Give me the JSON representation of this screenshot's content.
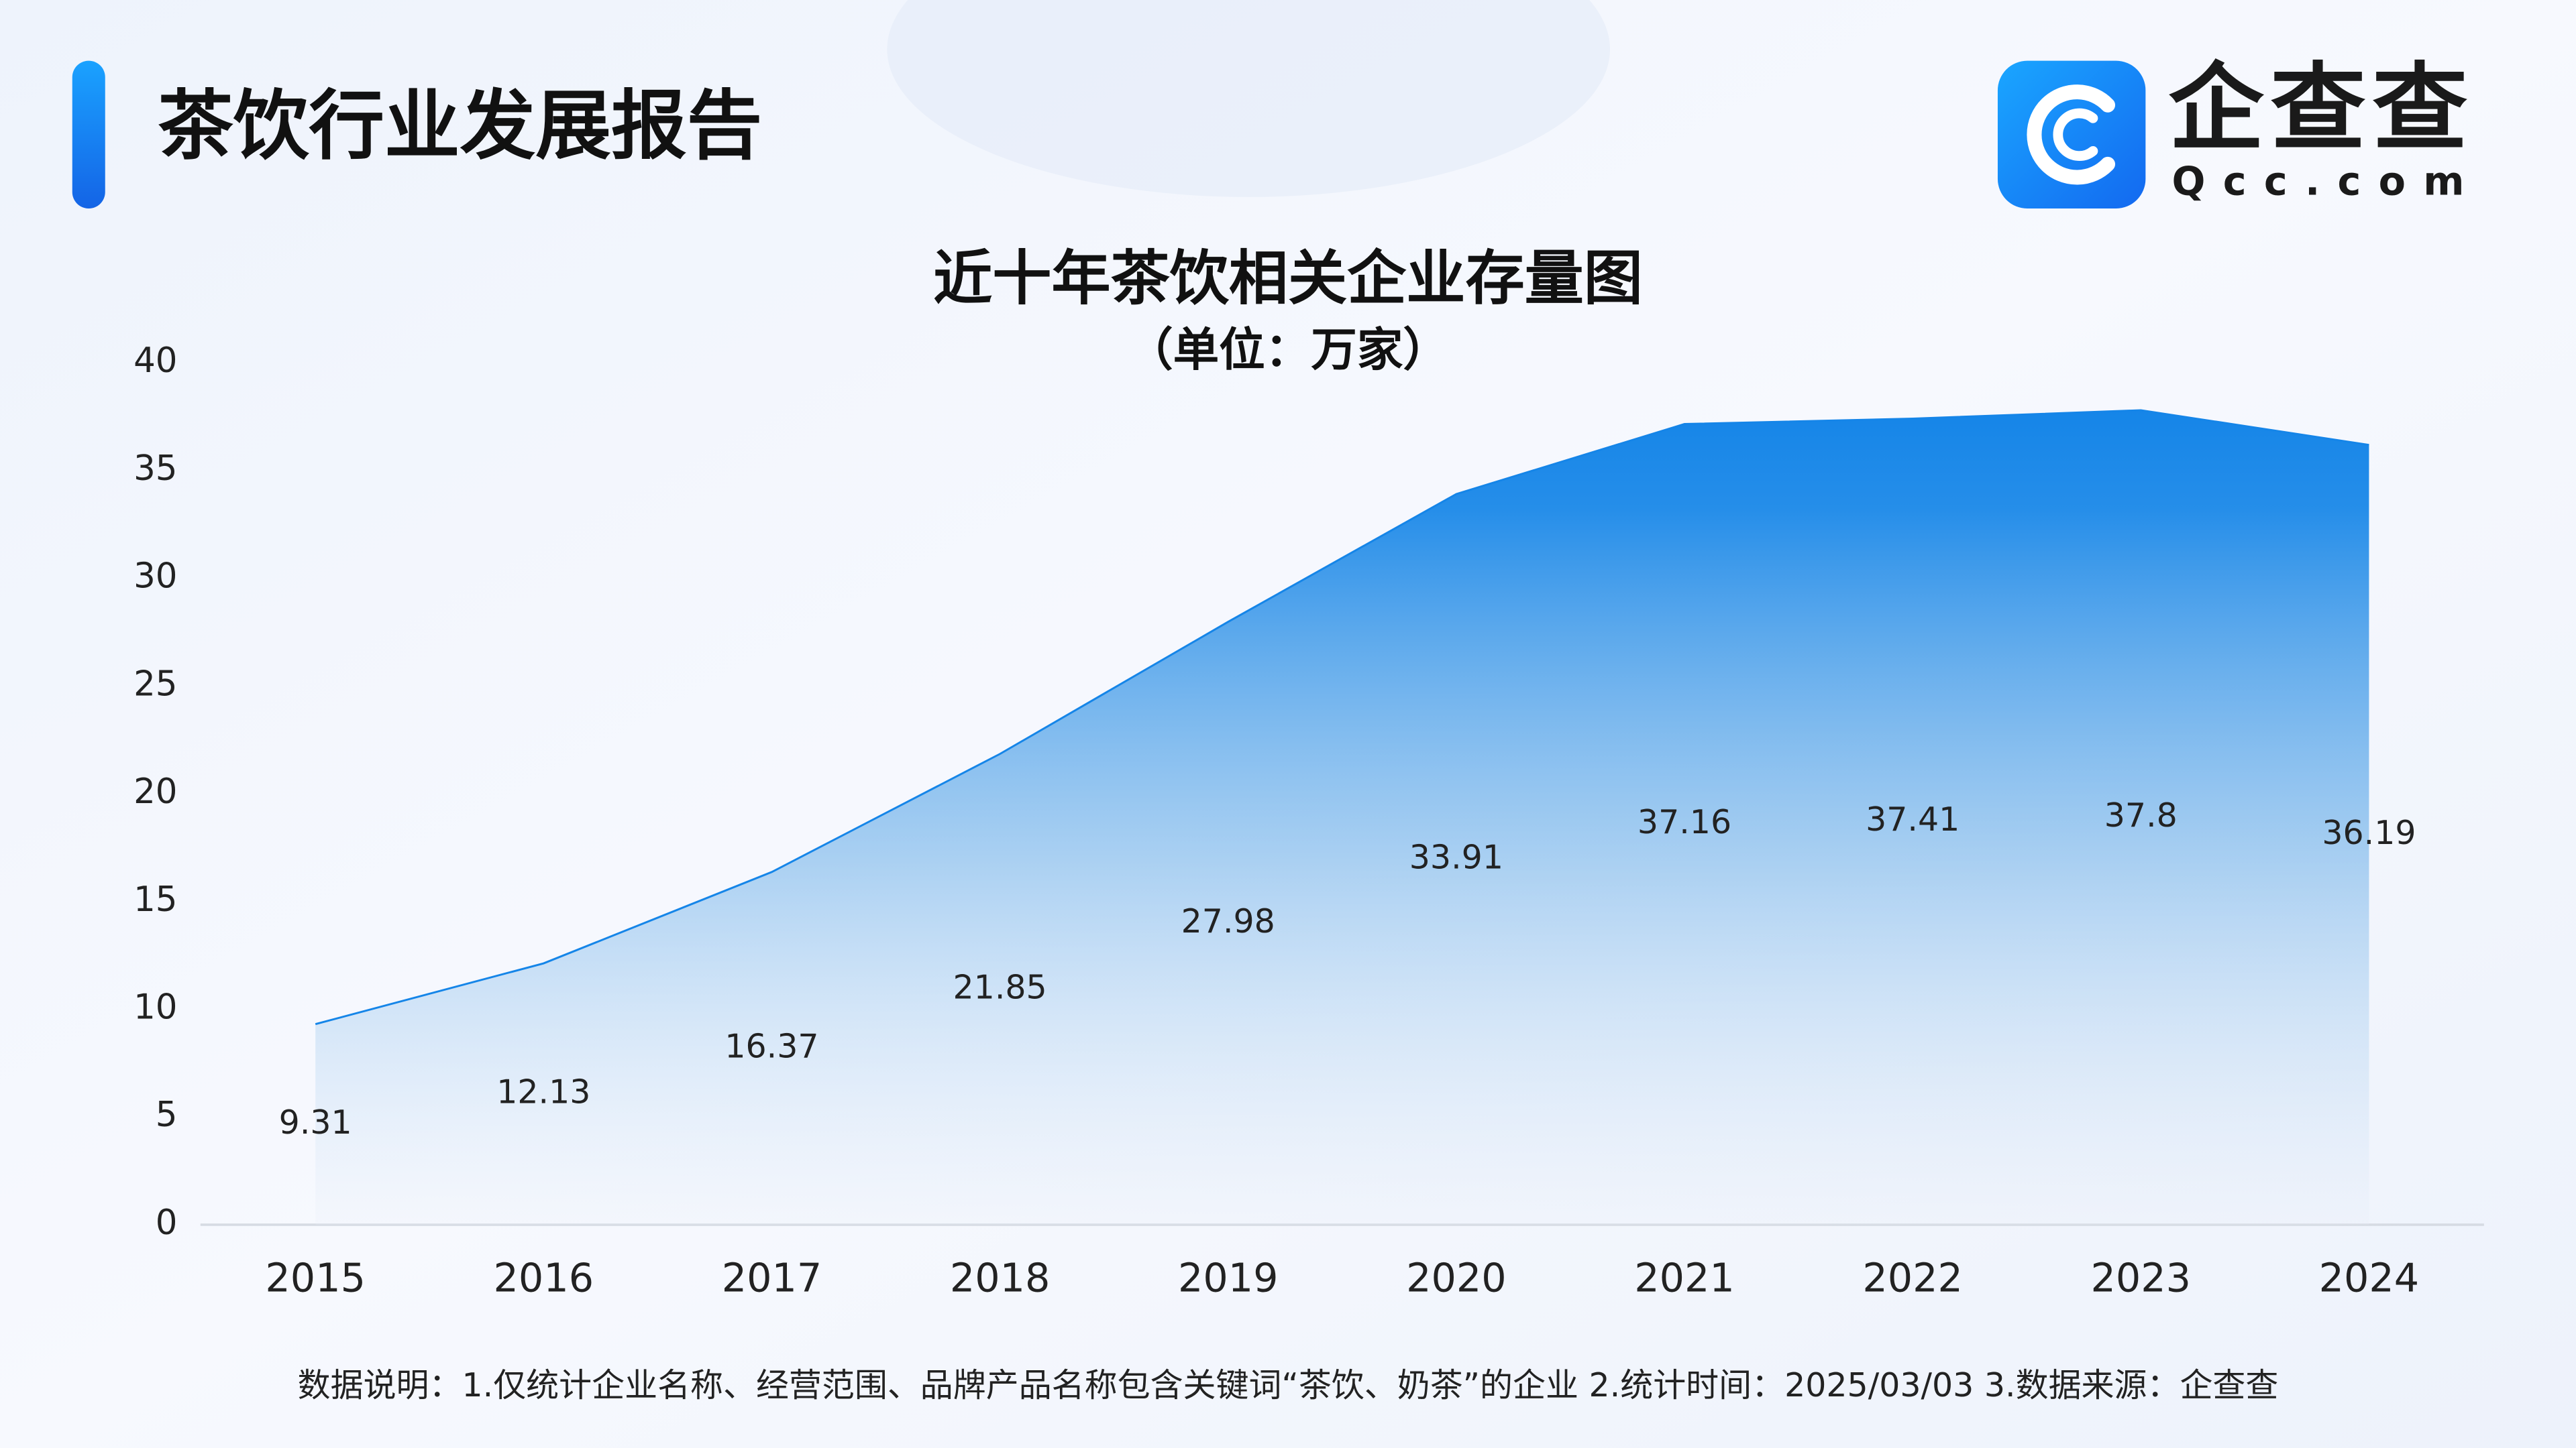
{
  "header": {
    "title": "茶饮行业发展报告",
    "logo_name": "企查查",
    "logo_domain": "Qcc.com"
  },
  "chart_data": {
    "type": "area",
    "title": "近十年茶饮相关企业存量图",
    "subtitle": "（单位：万家）",
    "categories": [
      "2015",
      "2016",
      "2017",
      "2018",
      "2019",
      "2020",
      "2021",
      "2022",
      "2023",
      "2024"
    ],
    "values": [
      9.31,
      12.13,
      16.37,
      21.85,
      27.98,
      33.91,
      37.16,
      37.41,
      37.8,
      36.19
    ],
    "color": "#1585e8",
    "ylim": [
      0,
      40
    ],
    "yticks": [
      0,
      5,
      10,
      15,
      20,
      25,
      30,
      35,
      40
    ],
    "grid": false
  },
  "footnote": "数据说明：1.仅统计企业名称、经营范围、品牌产品名称包含关键词“茶饮、奶茶”的企业   2.统计时间：2025/03/03    3.数据来源：企查查"
}
